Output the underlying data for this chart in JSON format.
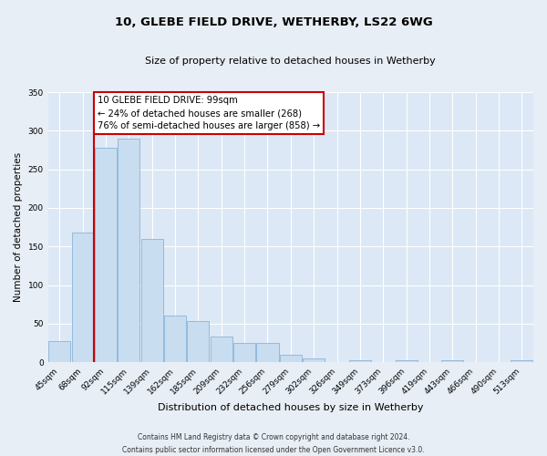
{
  "title": "10, GLEBE FIELD DRIVE, WETHERBY, LS22 6WG",
  "subtitle": "Size of property relative to detached houses in Wetherby",
  "xlabel": "Distribution of detached houses by size in Wetherby",
  "ylabel": "Number of detached properties",
  "bar_labels": [
    "45sqm",
    "68sqm",
    "92sqm",
    "115sqm",
    "139sqm",
    "162sqm",
    "185sqm",
    "209sqm",
    "232sqm",
    "256sqm",
    "279sqm",
    "302sqm",
    "326sqm",
    "349sqm",
    "373sqm",
    "396sqm",
    "419sqm",
    "443sqm",
    "466sqm",
    "490sqm",
    "513sqm"
  ],
  "bar_values": [
    28,
    168,
    278,
    290,
    160,
    60,
    53,
    33,
    25,
    25,
    10,
    5,
    0,
    3,
    0,
    3,
    0,
    3,
    0,
    0,
    3
  ],
  "bar_color": "#c8ddf0",
  "bar_edge_color": "#8ab4d8",
  "vline_index": 2,
  "vline_color": "#cc0000",
  "ylim": [
    0,
    350
  ],
  "yticks": [
    0,
    50,
    100,
    150,
    200,
    250,
    300,
    350
  ],
  "annotation_title": "10 GLEBE FIELD DRIVE: 99sqm",
  "annotation_line1": "← 24% of detached houses are smaller (268)",
  "annotation_line2": "76% of semi-detached houses are larger (858) →",
  "annotation_box_facecolor": "#ffffff",
  "annotation_box_edgecolor": "#cc0000",
  "footer_line1": "Contains HM Land Registry data © Crown copyright and database right 2024.",
  "footer_line2": "Contains public sector information licensed under the Open Government Licence v3.0.",
  "fig_facecolor": "#e8eef5",
  "axes_facecolor": "#dce8f5",
  "grid_color": "#ffffff",
  "title_fontsize": 9.5,
  "subtitle_fontsize": 8,
  "ylabel_fontsize": 7.5,
  "xlabel_fontsize": 8,
  "tick_fontsize": 6.5,
  "footer_fontsize": 5.5,
  "annot_fontsize": 7.2
}
